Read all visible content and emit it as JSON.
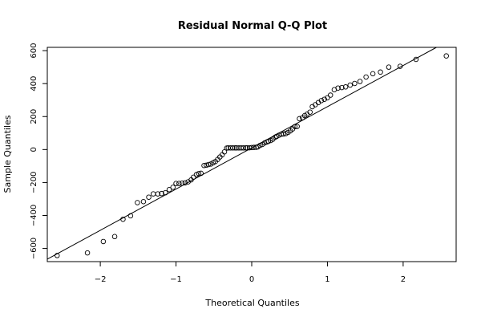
{
  "chart_data": {
    "type": "scatter",
    "title": "Residual Normal Q-Q Plot",
    "xlabel": "Theoretical Quantiles",
    "ylabel": "Sample Quantiles",
    "xlim": [
      -2.7,
      2.7
    ],
    "ylim": [
      -680,
      620
    ],
    "x_ticks": [
      -2,
      -1,
      0,
      1,
      2
    ],
    "x_tick_labels": [
      "−2",
      "−1",
      "0",
      "1",
      "2"
    ],
    "y_ticks": [
      -600,
      -400,
      -200,
      0,
      200,
      400,
      600
    ],
    "y_tick_labels": [
      "−600",
      "−400",
      "−200",
      "0",
      "200",
      "400",
      "600"
    ],
    "grid": false,
    "marker": "open-circle",
    "reference_line": {
      "intercept": 10,
      "slope": 250
    },
    "series": [
      {
        "points": [
          [
            -2.57,
            -643
          ],
          [
            -2.17,
            -627
          ],
          [
            -1.96,
            -558
          ],
          [
            -1.81,
            -528
          ],
          [
            -1.7,
            -423
          ],
          [
            -1.6,
            -402
          ],
          [
            -1.51,
            -322
          ],
          [
            -1.43,
            -316
          ],
          [
            -1.36,
            -289
          ],
          [
            -1.3,
            -269
          ],
          [
            -1.24,
            -269
          ],
          [
            -1.19,
            -267
          ],
          [
            -1.14,
            -262
          ],
          [
            -1.09,
            -243
          ],
          [
            -1.04,
            -229
          ],
          [
            -1.0,
            -206
          ],
          [
            -0.96,
            -206
          ],
          [
            -0.92,
            -204
          ],
          [
            -0.88,
            -202
          ],
          [
            -0.84,
            -196
          ],
          [
            -0.8,
            -184
          ],
          [
            -0.77,
            -168
          ],
          [
            -0.73,
            -152
          ],
          [
            -0.7,
            -146
          ],
          [
            -0.67,
            -144
          ],
          [
            -0.63,
            -97
          ],
          [
            -0.6,
            -95
          ],
          [
            -0.57,
            -91
          ],
          [
            -0.54,
            -88
          ],
          [
            -0.51,
            -80
          ],
          [
            -0.48,
            -73
          ],
          [
            -0.45,
            -60
          ],
          [
            -0.42,
            -45
          ],
          [
            -0.39,
            -32
          ],
          [
            -0.36,
            -14
          ],
          [
            -0.33,
            9
          ],
          [
            -0.31,
            10
          ],
          [
            -0.28,
            10
          ],
          [
            -0.25,
            10
          ],
          [
            -0.22,
            10
          ],
          [
            -0.2,
            10
          ],
          [
            -0.17,
            10
          ],
          [
            -0.14,
            10
          ],
          [
            -0.11,
            10
          ],
          [
            -0.08,
            10
          ],
          [
            -0.06,
            10
          ],
          [
            -0.03,
            11
          ],
          [
            0.0,
            12
          ],
          [
            0.03,
            13
          ],
          [
            0.06,
            14
          ],
          [
            0.08,
            16
          ],
          [
            0.11,
            25
          ],
          [
            0.14,
            31
          ],
          [
            0.17,
            40
          ],
          [
            0.2,
            46
          ],
          [
            0.22,
            50
          ],
          [
            0.25,
            55
          ],
          [
            0.28,
            63
          ],
          [
            0.31,
            75
          ],
          [
            0.33,
            80
          ],
          [
            0.36,
            87
          ],
          [
            0.39,
            93
          ],
          [
            0.42,
            94
          ],
          [
            0.45,
            97
          ],
          [
            0.48,
            104
          ],
          [
            0.51,
            113
          ],
          [
            0.54,
            125
          ],
          [
            0.57,
            139
          ],
          [
            0.6,
            140
          ],
          [
            0.63,
            187
          ],
          [
            0.67,
            193
          ],
          [
            0.7,
            206
          ],
          [
            0.73,
            214
          ],
          [
            0.77,
            227
          ],
          [
            0.8,
            260
          ],
          [
            0.84,
            272
          ],
          [
            0.88,
            285
          ],
          [
            0.92,
            297
          ],
          [
            0.96,
            305
          ],
          [
            1.0,
            314
          ],
          [
            1.04,
            330
          ],
          [
            1.09,
            363
          ],
          [
            1.14,
            373
          ],
          [
            1.19,
            376
          ],
          [
            1.24,
            380
          ],
          [
            1.3,
            391
          ],
          [
            1.36,
            401
          ],
          [
            1.43,
            413
          ],
          [
            1.51,
            440
          ],
          [
            1.6,
            460
          ],
          [
            1.7,
            470
          ],
          [
            1.81,
            500
          ],
          [
            1.96,
            505
          ],
          [
            2.17,
            547
          ],
          [
            2.57,
            568
          ]
        ]
      }
    ]
  }
}
